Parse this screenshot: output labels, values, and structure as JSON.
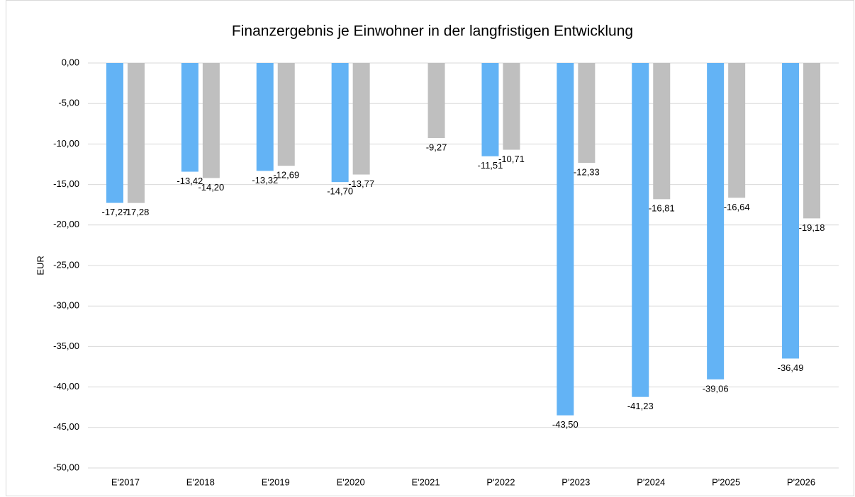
{
  "chart_data": {
    "type": "bar",
    "title": "Finanzergebnis je Einwohner in der langfristigen Entwicklung",
    "ylabel": "EUR",
    "categories": [
      "E'2017",
      "E'2018",
      "E'2019",
      "E'2020",
      "E'2021",
      "P'2022",
      "P'2023",
      "P'2024",
      "P'2025",
      "P'2026"
    ],
    "series": [
      {
        "color": "#63b3f5",
        "values": [
          -17.27,
          -13.42,
          -13.32,
          -14.7,
          null,
          -11.51,
          -43.5,
          -41.23,
          -39.06,
          -36.49
        ],
        "value_labels": [
          "-17,27",
          "-13,42",
          "-13,32",
          "-14,70",
          null,
          "-11,51",
          "-43,50",
          "-41,23",
          "-39,06",
          "-36,49"
        ]
      },
      {
        "color": "#bfbfbf",
        "values": [
          -17.28,
          -14.2,
          -12.69,
          -13.77,
          -9.27,
          -10.71,
          -12.33,
          -16.81,
          -16.64,
          -19.18
        ],
        "value_labels": [
          "-17,28",
          "-14,20",
          "-12,69",
          "-13,77",
          "-9,27",
          "-10,71",
          "-12,33",
          "-16,81",
          "-16,64",
          "-19,18"
        ]
      }
    ],
    "ylim": [
      -50,
      0
    ],
    "yticks": [
      {
        "value": 0,
        "label": "0,00"
      },
      {
        "value": -5,
        "label": "-5,00"
      },
      {
        "value": -10,
        "label": "-10,00"
      },
      {
        "value": -15,
        "label": "-15,00"
      },
      {
        "value": -20,
        "label": "-20,00"
      },
      {
        "value": -25,
        "label": "-25,00"
      },
      {
        "value": -30,
        "label": "-30,00"
      },
      {
        "value": -35,
        "label": "-35,00"
      },
      {
        "value": -40,
        "label": "-40,00"
      },
      {
        "value": -45,
        "label": "-45,00"
      },
      {
        "value": -50,
        "label": "-50,00"
      }
    ],
    "grid": true
  }
}
